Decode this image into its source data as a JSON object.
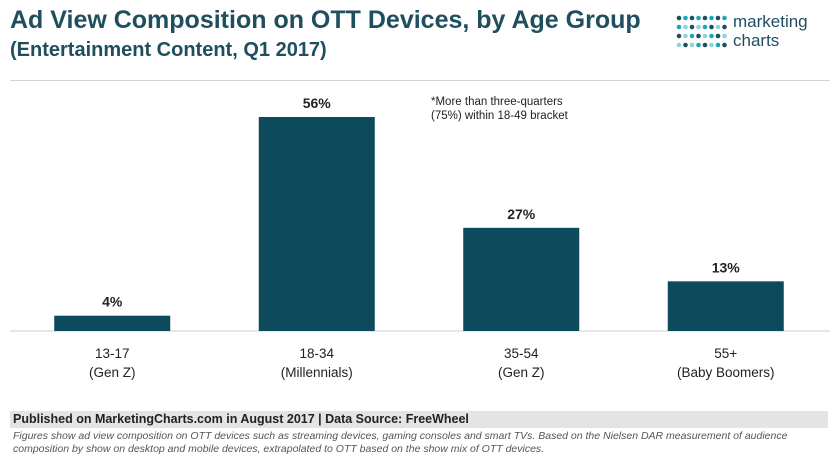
{
  "header": {
    "title": "Ad View Composition on OTT Devices, by Age Group",
    "subtitle": "(Entertainment Content, Q1 2017)"
  },
  "logo": {
    "line1": "marketing",
    "line2": "charts",
    "dot_colors": [
      "#17a8b5",
      "#1f4e5e",
      "#8fd3da"
    ]
  },
  "note": {
    "line1": "*More than three-quarters",
    "line2": "(75%) within 18-49 bracket"
  },
  "chart_data": {
    "type": "bar",
    "categories": [
      "13-17",
      "18-34",
      "35-54",
      "55+"
    ],
    "subcategories": [
      "(Gen Z)",
      "(Millennials)",
      "(Gen Z)",
      "(Baby Boomers)"
    ],
    "values": [
      4,
      56,
      27,
      13
    ],
    "value_labels": [
      "4%",
      "56%",
      "27%",
      "13%"
    ],
    "ylim": [
      0,
      60
    ],
    "grid": false,
    "bar_color": "#0c4a5c"
  },
  "footer": {
    "source": "Published on MarketingCharts.com in August 2017 | Data Source: FreeWheel",
    "note_line1": "Figures show ad view composition on OTT devices such as streaming devices, gaming consoles and smart TVs. Based on the Nielsen DAR measurement of audience",
    "note_line2": "composition by show on desktop and mobile devices, extrapolated to OTT based on the show mix of OTT devices."
  }
}
